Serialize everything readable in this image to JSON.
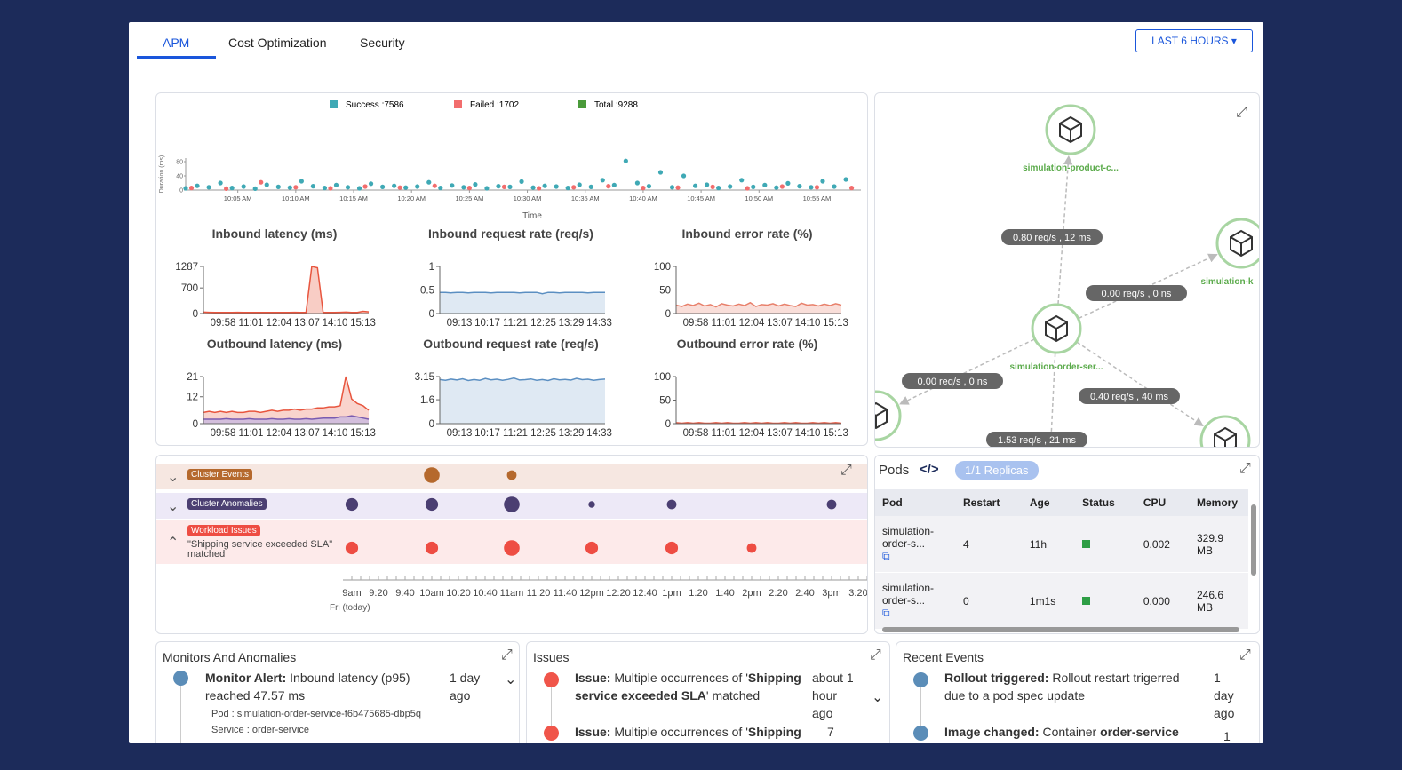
{
  "tabs": [
    "APM",
    "Cost Optimization",
    "Security"
  ],
  "time_range": "LAST 6 HOURS",
  "chart_data": [
    {
      "type": "scatter",
      "y_label": "Duration (ms)",
      "x_label": "Time",
      "xlim": [
        0.5,
        58.8
      ],
      "ylim": [
        0,
        90
      ],
      "yticks": [
        0,
        40,
        80
      ],
      "xticks": [
        {
          "value": 5,
          "label": "10:05 AM"
        },
        {
          "value": 10,
          "label": "10:10 AM"
        },
        {
          "value": 15,
          "label": "10:15 AM"
        },
        {
          "value": 20,
          "label": "10:20 AM"
        },
        {
          "value": 25,
          "label": "10:25 AM"
        },
        {
          "value": 30,
          "label": "10:30 AM"
        },
        {
          "value": 35,
          "label": "10:35 AM"
        },
        {
          "value": 40,
          "label": "10:40 AM"
        },
        {
          "value": 45,
          "label": "10:45 AM"
        },
        {
          "value": 50,
          "label": "10:50 AM"
        },
        {
          "value": 55,
          "label": "10:55 AM"
        }
      ],
      "series": [
        {
          "name": "Success :7586",
          "color": "#3fa9b5",
          "x": [
            0.5,
            1.5,
            2.5,
            3.5,
            4.5,
            5.5,
            6.5,
            7.5,
            8.5,
            9.5,
            10.5,
            11.5,
            12.5,
            13.5,
            14.5,
            15.5,
            16.5,
            17.5,
            18.5,
            19.5,
            20.5,
            21.5,
            22.5,
            23.5,
            24.5,
            25.5,
            26.5,
            27.5,
            28.5,
            29.5,
            30.5,
            31.5,
            32.5,
            33.5,
            34.5,
            35.5,
            36.5,
            37.5,
            38.5,
            39.5,
            40.5,
            41.5,
            42.5,
            43.5,
            44.5,
            45.5,
            46.5,
            47.5,
            48.5,
            49.5,
            50.5,
            51.5,
            52.5,
            53.5,
            54.5,
            55.5,
            56.5,
            57.5
          ],
          "values": [
            5,
            12,
            8,
            20,
            6,
            10,
            4,
            15,
            9,
            7,
            25,
            11,
            6,
            14,
            8,
            5,
            18,
            9,
            12,
            7,
            10,
            22,
            6,
            13,
            8,
            16,
            5,
            11,
            9,
            24,
            7,
            12,
            10,
            6,
            15,
            9,
            28,
            14,
            82,
            20,
            11,
            50,
            8,
            40,
            12,
            15,
            6,
            10,
            28,
            9,
            14,
            7,
            19,
            11,
            8,
            25,
            10,
            30
          ]
        },
        {
          "name": "Failed :1702",
          "color": "#f26d6d",
          "x": [
            1,
            4,
            7,
            10,
            13,
            16,
            19,
            22,
            25,
            28,
            31,
            34,
            37,
            40,
            43,
            46,
            49,
            52,
            55,
            58
          ],
          "values": [
            6,
            4,
            22,
            8,
            5,
            10,
            7,
            12,
            6,
            9,
            5,
            8,
            11,
            6,
            7,
            9,
            5,
            10,
            8,
            6
          ]
        },
        {
          "name": "Total :9288",
          "color": "#4a9a3a"
        }
      ]
    },
    {
      "type": "line",
      "title": "Inbound latency (ms)",
      "ylim": [
        0,
        1287
      ],
      "yticks": [
        0,
        700,
        1287
      ],
      "x_labels": [
        "09:58",
        "11:01",
        "12:04",
        "13:07",
        "14:10",
        "15:13"
      ],
      "series": [
        {
          "color": "#e8553e",
          "fill": "#f6c1b6",
          "values": [
            40,
            35,
            30,
            32,
            28,
            30,
            35,
            30,
            28,
            30,
            32,
            30,
            29,
            30,
            31,
            30,
            33,
            30,
            30,
            1287,
            1250,
            30,
            28,
            30,
            35,
            40,
            30,
            32,
            60,
            45
          ]
        }
      ]
    },
    {
      "type": "area",
      "title": "Inbound request rate (req/s)",
      "ylim": [
        0,
        1
      ],
      "yticks": [
        0,
        0.5,
        1
      ],
      "x_labels": [
        "09:13",
        "10:17",
        "11:21",
        "12:25",
        "13:29",
        "14:33"
      ],
      "series": [
        {
          "color": "#5b8fc2",
          "fill": "#d7e3f0",
          "values": [
            0.45,
            0.45,
            0.44,
            0.45,
            0.45,
            0.44,
            0.45,
            0.45,
            0.45,
            0.44,
            0.45,
            0.45,
            0.45,
            0.45,
            0.44,
            0.45,
            0.45,
            0.45,
            0.42,
            0.45,
            0.45,
            0.44,
            0.45,
            0.45,
            0.45,
            0.45,
            0.44,
            0.45,
            0.45,
            0.45
          ]
        }
      ]
    },
    {
      "type": "area",
      "title": "Inbound error rate (%)",
      "ylim": [
        0,
        100
      ],
      "yticks": [
        0,
        50,
        100
      ],
      "x_labels": [
        "09:58",
        "11:01",
        "12:04",
        "13:07",
        "14:10",
        "15:13"
      ],
      "series": [
        {
          "color": "#e8806b",
          "fill": "#f8d6cf",
          "values": [
            18,
            15,
            20,
            17,
            22,
            16,
            19,
            14,
            21,
            18,
            16,
            20,
            17,
            23,
            15,
            19,
            18,
            21,
            16,
            20,
            17,
            15,
            22,
            18,
            19,
            16,
            20,
            17,
            21,
            18
          ]
        }
      ]
    },
    {
      "type": "area",
      "title": "Outbound latency (ms)",
      "ylim": [
        0,
        21
      ],
      "yticks": [
        0,
        12,
        21
      ],
      "x_labels": [
        "09:58",
        "11:01",
        "12:04",
        "13:07",
        "14:10",
        "15:13"
      ],
      "series": [
        {
          "color": "#e8553e",
          "fill": "#f8c9c0",
          "values": [
            5,
            5.5,
            5,
            5.5,
            5,
            5.5,
            5,
            5,
            5.5,
            5.5,
            5,
            5.5,
            6,
            5.5,
            6,
            6,
            6.5,
            6,
            6.5,
            6.5,
            7,
            7,
            7.5,
            7.5,
            8,
            21,
            11,
            9,
            8,
            6
          ]
        },
        {
          "color": "#7a5bb0",
          "fill": "#c9b8e0",
          "values": [
            2,
            2,
            2,
            2,
            2.2,
            2,
            2,
            2,
            2.2,
            2,
            2,
            2,
            2.2,
            2,
            2,
            2.2,
            2,
            2,
            2.2,
            2,
            2.2,
            2.5,
            2.5,
            2.5,
            3,
            3,
            3.5,
            3,
            2.5,
            2
          ]
        }
      ]
    },
    {
      "type": "area",
      "title": "Outbound request rate (req/s)",
      "ylim": [
        0,
        3.15
      ],
      "yticks": [
        0,
        1.6,
        3.15
      ],
      "x_labels": [
        "09:13",
        "10:17",
        "11:21",
        "12:25",
        "13:29",
        "14:33"
      ],
      "series": [
        {
          "color": "#5b8fc2",
          "fill": "#d7e3f0",
          "values": [
            2.95,
            2.9,
            2.98,
            2.92,
            3.0,
            2.88,
            2.95,
            2.9,
            3.02,
            2.93,
            2.97,
            2.9,
            2.96,
            3.05,
            2.92,
            2.94,
            2.99,
            2.9,
            2.95,
            2.88,
            3.0,
            2.93,
            2.96,
            2.91,
            3.03,
            2.94,
            2.97,
            2.9,
            2.95,
            2.98
          ]
        }
      ]
    },
    {
      "type": "area",
      "title": "Outbound error rate (%)",
      "ylim": [
        0,
        100
      ],
      "yticks": [
        0,
        50,
        100
      ],
      "x_labels": [
        "09:58",
        "11:01",
        "12:04",
        "13:07",
        "14:10",
        "15:13"
      ],
      "series": [
        {
          "color": "#e8553e",
          "fill": "#f8d6cf",
          "values": [
            2,
            1,
            2,
            1,
            2,
            1,
            1,
            2,
            1,
            2,
            1,
            1,
            2,
            1,
            2,
            1,
            2,
            1,
            1,
            2,
            1,
            2,
            1,
            1,
            2,
            1,
            2,
            1,
            2,
            1
          ]
        }
      ]
    }
  ],
  "service_map": {
    "nodes": [
      "simulation-product-c...",
      "simulation-k",
      "simulation-order-ser..."
    ],
    "edges": [
      "0.80 req/s , 12 ms",
      "0.00 req/s , 0 ns",
      "0.00 req/s , 0 ns",
      "0.40 req/s , 40 ms",
      "1.53 req/s , 21 ms"
    ]
  },
  "events": {
    "ticks": [
      "9am",
      "9:20",
      "9:40",
      "10am",
      "10:20",
      "10:40",
      "11am",
      "11:20",
      "11:40",
      "12pm",
      "12:20",
      "12:40",
      "1pm",
      "1:20",
      "1:40",
      "2pm",
      "2:20",
      "2:40",
      "3pm",
      "3:20"
    ],
    "day": "Fri (today)",
    "rows": [
      {
        "name": "Cluster Events",
        "color": "#b5692d",
        "dots": [
          {
            "tick": 3,
            "count": 4
          },
          {
            "tick": 6,
            "count": 2
          }
        ]
      },
      {
        "name": "Cluster Anomalies",
        "color": "#4b3f72",
        "dots": [
          {
            "tick": 0,
            "count": 3
          },
          {
            "tick": 3,
            "count": 3
          },
          {
            "tick": 6,
            "count": 4
          },
          {
            "tick": 9,
            "count": 1
          },
          {
            "tick": 12,
            "count": 2
          },
          {
            "tick": 18,
            "count": 2
          }
        ]
      },
      {
        "name": "Workload Issues",
        "description": "\"Shipping service exceeded SLA\" matched",
        "color": "#ee4d43",
        "dots": [
          {
            "tick": 0,
            "count": 3
          },
          {
            "tick": 3,
            "count": 3
          },
          {
            "tick": 6,
            "count": 4
          },
          {
            "tick": 9,
            "count": 3
          },
          {
            "tick": 12,
            "count": 3
          },
          {
            "tick": 15,
            "count": 2
          }
        ]
      }
    ]
  },
  "pods": {
    "title": "Pods",
    "replicas": "1/1 Replicas",
    "columns": [
      "Pod",
      "Restart",
      "Age",
      "Status",
      "CPU",
      "Memory"
    ],
    "rows": [
      [
        "simulation-order-s...",
        4,
        "11h",
        0.002,
        "329.9 MB"
      ],
      [
        "simulation-order-s...",
        0,
        "1m1s",
        "0.000",
        "246.6 MB"
      ]
    ]
  },
  "monitors": {
    "title": "Monitors And Anomalies",
    "items": [
      {
        "kind": "Monitor Alert:",
        "text": "Inbound latency (p95) reached 47.57 ms",
        "time": "1 day ago",
        "details": [
          "Pod : simulation-order-service-f6b475685-dbp5q",
          "Service : order-service"
        ]
      }
    ]
  },
  "issues": {
    "title": "Issues",
    "items": [
      {
        "kind": "Issue:",
        "text": "Multiple occurrences of '",
        "bold": "Shipping service exceeded SLA",
        "tail": "' matched",
        "time": "about 1 hour ago"
      },
      {
        "kind": "Issue:",
        "text": "Multiple occurrences of '",
        "bold": "Shipping",
        "time": "7"
      }
    ]
  },
  "recent_events": {
    "title": "Recent Events",
    "items": [
      {
        "kind": "Rollout triggered:",
        "text": "Rollout restart trigerred due to a pod spec update",
        "time": "1 day ago"
      },
      {
        "kind": "Image changed:",
        "text": "Container ",
        "bold": "order-service",
        "time": "1"
      }
    ]
  }
}
